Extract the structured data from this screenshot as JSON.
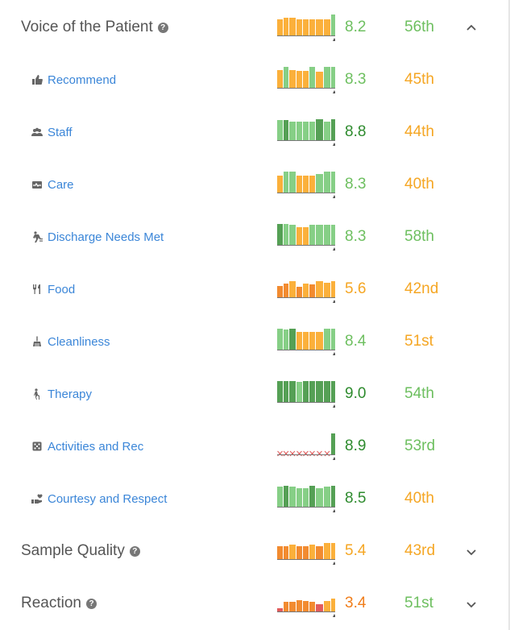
{
  "colors": {
    "orange": "#fbb03b",
    "light_green": "#86cf86",
    "dark_green": "#55a055",
    "deep_orange": "#f28b30",
    "red": "#e25c5c",
    "score_light_green": "#6dbf5f",
    "score_dark_green": "#2e8b2e",
    "score_orange": "#f5a623",
    "score_deep_orange": "#f07d1a"
  },
  "rows": [
    {
      "kind": "section",
      "title": "Voice of the Patient",
      "help": "?",
      "score": "8.2",
      "percentile": "56th",
      "score_color": "score_light_green",
      "pct_color": "score_light_green",
      "chevron": "chevron-up-icon",
      "bars": [
        "orange",
        "orange",
        "orange",
        "orange",
        "orange",
        "orange",
        "orange",
        "orange",
        "light_green"
      ],
      "heights": [
        0.75,
        0.85,
        0.85,
        0.75,
        0.75,
        0.75,
        0.75,
        0.75,
        1.0
      ]
    },
    {
      "kind": "sub",
      "label": "Recommend",
      "icon": "thumbs-up-icon",
      "score": "8.3",
      "percentile": "45th",
      "score_color": "score_light_green",
      "pct_color": "score_orange",
      "bars": [
        "orange",
        "light_green",
        "orange",
        "orange",
        "orange",
        "light_green",
        "orange",
        "light_green",
        "light_green"
      ],
      "heights": [
        0.85,
        1.0,
        0.85,
        0.8,
        0.8,
        1.0,
        0.75,
        1.0,
        1.0
      ]
    },
    {
      "kind": "sub",
      "label": "Staff",
      "icon": "people-icon",
      "score": "8.8",
      "percentile": "44th",
      "score_color": "score_dark_green",
      "pct_color": "score_orange",
      "bars": [
        "light_green",
        "dark_green",
        "light_green",
        "light_green",
        "light_green",
        "light_green",
        "dark_green",
        "light_green",
        "dark_green"
      ],
      "heights": [
        0.95,
        0.95,
        0.9,
        0.9,
        0.9,
        0.9,
        1.0,
        0.9,
        1.0
      ]
    },
    {
      "kind": "sub",
      "label": "Care",
      "icon": "health-card-icon",
      "score": "8.3",
      "percentile": "40th",
      "score_color": "score_light_green",
      "pct_color": "score_orange",
      "bars": [
        "orange",
        "light_green",
        "light_green",
        "orange",
        "orange",
        "orange",
        "light_green",
        "light_green",
        "light_green"
      ],
      "heights": [
        0.8,
        1.0,
        1.0,
        0.8,
        0.8,
        0.8,
        0.9,
        1.0,
        1.0
      ]
    },
    {
      "kind": "sub",
      "label": "Discharge Needs Met",
      "icon": "walking-exit-icon",
      "score": "8.3",
      "percentile": "58th",
      "score_color": "score_light_green",
      "pct_color": "score_light_green",
      "bars": [
        "dark_green",
        "light_green",
        "light_green",
        "orange",
        "orange",
        "light_green",
        "light_green",
        "light_green",
        "light_green"
      ],
      "heights": [
        1.0,
        1.0,
        0.95,
        0.85,
        0.85,
        0.95,
        0.95,
        0.95,
        0.95
      ]
    },
    {
      "kind": "sub",
      "label": "Food",
      "icon": "fork-knife-icon",
      "score": "5.6",
      "percentile": "42nd",
      "score_color": "score_orange",
      "pct_color": "score_orange",
      "bars": [
        "deep_orange",
        "deep_orange",
        "orange",
        "deep_orange",
        "orange",
        "deep_orange",
        "orange",
        "orange",
        "orange"
      ],
      "heights": [
        0.55,
        0.65,
        0.75,
        0.5,
        0.65,
        0.6,
        0.75,
        0.7,
        0.75
      ]
    },
    {
      "kind": "sub",
      "label": "Cleanliness",
      "icon": "broom-icon",
      "score": "8.4",
      "percentile": "51st",
      "score_color": "score_light_green",
      "pct_color": "score_orange",
      "bars": [
        "light_green",
        "light_green",
        "dark_green",
        "orange",
        "orange",
        "orange",
        "orange",
        "light_green",
        "light_green"
      ],
      "heights": [
        1.0,
        0.95,
        1.0,
        0.85,
        0.85,
        0.85,
        0.85,
        1.0,
        1.0
      ]
    },
    {
      "kind": "sub",
      "label": "Therapy",
      "icon": "walker-icon",
      "score": "9.0",
      "percentile": "54th",
      "score_color": "score_dark_green",
      "pct_color": "score_light_green",
      "bars": [
        "dark_green",
        "dark_green",
        "dark_green",
        "light_green",
        "dark_green",
        "dark_green",
        "dark_green",
        "dark_green",
        "dark_green"
      ],
      "heights": [
        1.0,
        1.0,
        1.0,
        0.95,
        1.0,
        1.0,
        1.0,
        1.0,
        1.0
      ]
    },
    {
      "kind": "sub",
      "label": "Activities and Rec",
      "icon": "dice-icon",
      "score": "8.9",
      "percentile": "53rd",
      "score_color": "score_dark_green",
      "pct_color": "score_light_green",
      "bars": [
        "missing",
        "missing",
        "missing",
        "missing",
        "missing",
        "missing",
        "missing",
        "missing",
        "dark_green"
      ],
      "heights": [
        0,
        0,
        0,
        0,
        0,
        0,
        0,
        0,
        1.0
      ]
    },
    {
      "kind": "sub",
      "label": "Courtesy and Respect",
      "icon": "hand-heart-icon",
      "score": "8.5",
      "percentile": "40th",
      "score_color": "score_dark_green",
      "pct_color": "score_orange",
      "bars": [
        "light_green",
        "dark_green",
        "light_green",
        "light_green",
        "light_green",
        "dark_green",
        "light_green",
        "light_green",
        "dark_green"
      ],
      "heights": [
        0.95,
        1.0,
        0.95,
        0.9,
        0.9,
        1.0,
        0.9,
        0.95,
        1.0
      ]
    },
    {
      "kind": "section",
      "title": "Sample Quality",
      "help": "?",
      "score": "5.4",
      "percentile": "43rd",
      "score_color": "score_orange",
      "pct_color": "score_orange",
      "chevron": "chevron-down-icon",
      "bars": [
        "deep_orange",
        "deep_orange",
        "orange",
        "deep_orange",
        "deep_orange",
        "orange",
        "deep_orange",
        "orange",
        "orange"
      ],
      "heights": [
        0.6,
        0.6,
        0.7,
        0.6,
        0.6,
        0.7,
        0.6,
        0.75,
        0.75
      ]
    },
    {
      "kind": "section",
      "title": "Reaction",
      "help": "?",
      "score": "3.4",
      "percentile": "51st",
      "score_color": "score_deep_orange",
      "pct_color": "score_light_green",
      "chevron": "chevron-down-icon",
      "bars": [
        "red",
        "deep_orange",
        "deep_orange",
        "deep_orange",
        "deep_orange",
        "deep_orange",
        "red",
        "orange",
        "orange"
      ],
      "heights": [
        0.15,
        0.45,
        0.45,
        0.55,
        0.5,
        0.45,
        0.35,
        0.5,
        0.6
      ]
    }
  ]
}
